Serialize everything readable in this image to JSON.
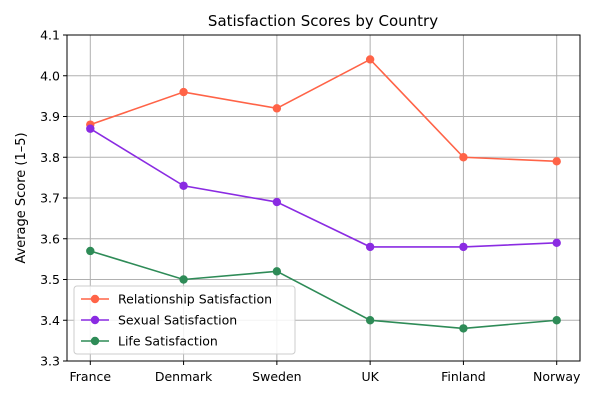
{
  "chart_data": {
    "type": "line",
    "title": "Satisfaction Scores by Country",
    "xlabel": "",
    "ylabel": "Average Score (1–5)",
    "categories": [
      "France",
      "Denmark",
      "Sweden",
      "UK",
      "Finland",
      "Norway"
    ],
    "ylim": [
      3.3,
      4.1
    ],
    "yticks": [
      "3.3",
      "3.4",
      "3.5",
      "3.6",
      "3.7",
      "3.8",
      "3.9",
      "4.0",
      "4.1"
    ],
    "grid": true,
    "legend_position": "bottom-left",
    "series": [
      {
        "name": "Relationship Satisfaction",
        "color": "#ff6347",
        "values": [
          3.88,
          3.96,
          3.92,
          4.04,
          3.8,
          3.79
        ]
      },
      {
        "name": "Sexual Satisfaction",
        "color": "#8a2be2",
        "values": [
          3.87,
          3.73,
          3.69,
          3.58,
          3.58,
          3.59
        ]
      },
      {
        "name": "Life Satisfaction",
        "color": "#2e8b57",
        "values": [
          3.57,
          3.5,
          3.52,
          3.4,
          3.38,
          3.4
        ]
      }
    ]
  }
}
